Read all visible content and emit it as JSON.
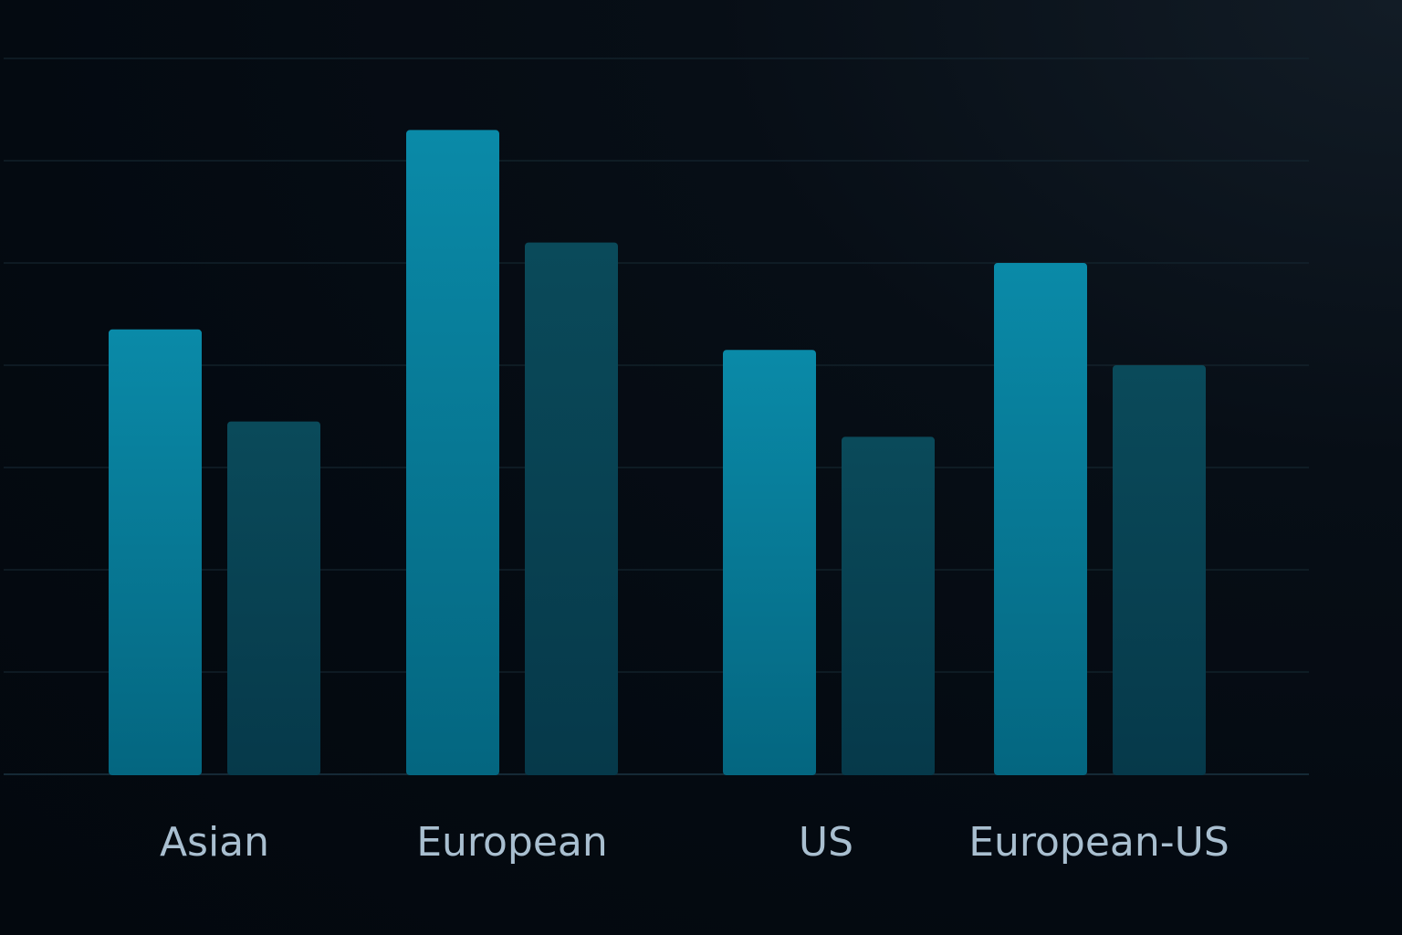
{
  "chart_data": {
    "type": "bar",
    "categories": [
      "Asian",
      "European",
      "US",
      "European-US"
    ],
    "series": [
      {
        "values": [
          4.35,
          6.3,
          4.15,
          5.0
        ]
      },
      {
        "values": [
          3.45,
          5.2,
          3.3,
          4.0
        ]
      }
    ],
    "ylim": [
      0,
      7
    ],
    "grid": true,
    "colors": {
      "series_1_top": "#0a8aa8",
      "series_1_bottom": "#046680",
      "series_2_top": "#0a4a5a",
      "series_2_bottom": "#06394a",
      "gridline": "#14252f",
      "baseline": "#1b3442",
      "label": "#a9bfd0"
    }
  }
}
